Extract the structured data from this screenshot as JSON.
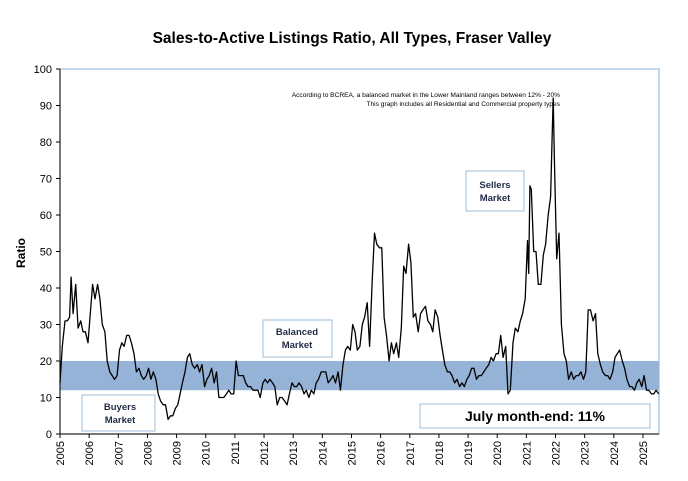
{
  "chart_data": {
    "type": "line",
    "title": "Sales-to-Active Listings Ratio, All Types, Fraser Valley",
    "ylabel": "Ratio",
    "xlabel": "",
    "ylim": [
      0,
      100
    ],
    "yticks": [
      0,
      10,
      20,
      30,
      40,
      50,
      60,
      70,
      80,
      90,
      100
    ],
    "xticks": [
      "2005",
      "2006",
      "2007",
      "2008",
      "2009",
      "2010",
      "2011",
      "2012",
      "2013",
      "2014",
      "2015",
      "2016",
      "2017",
      "2018",
      "2019",
      "2020",
      "2021",
      "2022",
      "2023",
      "2024",
      "2025"
    ],
    "xlim": [
      2005.0,
      2025.55
    ],
    "grid": false,
    "balanced_band": [
      12,
      20
    ],
    "band_color": "#95b3d7",
    "line_color": "#000000",
    "annotations": {
      "note_line1": "According to BCREA, a balanced market in the Lower Mainland ranges between  12% - 20%",
      "note_line2": "This graph includes all Residential and Commercial property types",
      "sellers_line1": "Sellers",
      "sellers_line2": "Market",
      "balanced_line1": "Balanced",
      "balanced_line2": "Market",
      "buyers_line1": "Buyers",
      "buyers_line2": "Market",
      "current": "July month-end: 11%"
    },
    "series": [
      {
        "points": [
          [
            2005.0,
            14
          ],
          [
            2005.08,
            24
          ],
          [
            2005.17,
            31
          ],
          [
            2005.25,
            31
          ],
          [
            2005.33,
            32
          ],
          [
            2005.38,
            43
          ],
          [
            2005.45,
            33
          ],
          [
            2005.54,
            41
          ],
          [
            2005.62,
            29
          ],
          [
            2005.71,
            31
          ],
          [
            2005.79,
            28
          ],
          [
            2005.87,
            28
          ],
          [
            2005.96,
            25
          ],
          [
            2006.04,
            33
          ],
          [
            2006.12,
            41
          ],
          [
            2006.2,
            37
          ],
          [
            2006.29,
            41
          ],
          [
            2006.37,
            37
          ],
          [
            2006.45,
            30
          ],
          [
            2006.54,
            28
          ],
          [
            2006.62,
            20
          ],
          [
            2006.71,
            17
          ],
          [
            2006.79,
            16
          ],
          [
            2006.87,
            15
          ],
          [
            2006.96,
            16
          ],
          [
            2007.04,
            23
          ],
          [
            2007.12,
            25
          ],
          [
            2007.2,
            24
          ],
          [
            2007.29,
            27
          ],
          [
            2007.37,
            27
          ],
          [
            2007.45,
            25
          ],
          [
            2007.54,
            22
          ],
          [
            2007.62,
            17
          ],
          [
            2007.71,
            18
          ],
          [
            2007.79,
            16
          ],
          [
            2007.87,
            15
          ],
          [
            2007.96,
            16
          ],
          [
            2008.04,
            18
          ],
          [
            2008.12,
            15
          ],
          [
            2008.2,
            17
          ],
          [
            2008.29,
            15
          ],
          [
            2008.37,
            11
          ],
          [
            2008.45,
            9
          ],
          [
            2008.54,
            8
          ],
          [
            2008.62,
            8
          ],
          [
            2008.71,
            4
          ],
          [
            2008.79,
            5
          ],
          [
            2008.87,
            5
          ],
          [
            2008.96,
            7
          ],
          [
            2009.04,
            8
          ],
          [
            2009.12,
            11
          ],
          [
            2009.2,
            14
          ],
          [
            2009.29,
            17
          ],
          [
            2009.37,
            21
          ],
          [
            2009.45,
            22
          ],
          [
            2009.54,
            19
          ],
          [
            2009.62,
            18
          ],
          [
            2009.71,
            19
          ],
          [
            2009.79,
            17
          ],
          [
            2009.87,
            19
          ],
          [
            2009.96,
            13
          ],
          [
            2010.04,
            15
          ],
          [
            2010.12,
            16
          ],
          [
            2010.2,
            18
          ],
          [
            2010.29,
            14
          ],
          [
            2010.37,
            17
          ],
          [
            2010.45,
            10
          ],
          [
            2010.54,
            10
          ],
          [
            2010.62,
            10
          ],
          [
            2010.71,
            11
          ],
          [
            2010.79,
            12
          ],
          [
            2010.87,
            11
          ],
          [
            2010.96,
            11
          ],
          [
            2011.04,
            20
          ],
          [
            2011.12,
            16
          ],
          [
            2011.2,
            16
          ],
          [
            2011.29,
            16
          ],
          [
            2011.37,
            14
          ],
          [
            2011.45,
            13
          ],
          [
            2011.54,
            13
          ],
          [
            2011.62,
            12
          ],
          [
            2011.71,
            12
          ],
          [
            2011.79,
            12
          ],
          [
            2011.87,
            10
          ],
          [
            2011.96,
            14
          ],
          [
            2012.04,
            15
          ],
          [
            2012.12,
            14
          ],
          [
            2012.2,
            15
          ],
          [
            2012.29,
            14
          ],
          [
            2012.37,
            13
          ],
          [
            2012.45,
            8
          ],
          [
            2012.54,
            10
          ],
          [
            2012.62,
            10
          ],
          [
            2012.71,
            9
          ],
          [
            2012.79,
            8
          ],
          [
            2012.87,
            11
          ],
          [
            2012.96,
            14
          ],
          [
            2013.04,
            13
          ],
          [
            2013.12,
            13
          ],
          [
            2013.2,
            14
          ],
          [
            2013.29,
            13
          ],
          [
            2013.37,
            11
          ],
          [
            2013.45,
            12
          ],
          [
            2013.54,
            10
          ],
          [
            2013.62,
            12
          ],
          [
            2013.71,
            11
          ],
          [
            2013.79,
            14
          ],
          [
            2013.87,
            15
          ],
          [
            2013.96,
            17
          ],
          [
            2014.04,
            17
          ],
          [
            2014.12,
            17
          ],
          [
            2014.2,
            14
          ],
          [
            2014.29,
            15
          ],
          [
            2014.37,
            16
          ],
          [
            2014.45,
            14
          ],
          [
            2014.54,
            17
          ],
          [
            2014.62,
            12
          ],
          [
            2014.71,
            19
          ],
          [
            2014.79,
            23
          ],
          [
            2014.87,
            24
          ],
          [
            2014.96,
            23
          ],
          [
            2015.04,
            30
          ],
          [
            2015.12,
            28
          ],
          [
            2015.2,
            23
          ],
          [
            2015.29,
            24
          ],
          [
            2015.37,
            30
          ],
          [
            2015.45,
            32
          ],
          [
            2015.54,
            36
          ],
          [
            2015.62,
            24
          ],
          [
            2015.71,
            42
          ],
          [
            2015.79,
            55
          ],
          [
            2015.87,
            52
          ],
          [
            2015.96,
            51
          ],
          [
            2016.04,
            51
          ],
          [
            2016.12,
            32
          ],
          [
            2016.2,
            27
          ],
          [
            2016.29,
            20
          ],
          [
            2016.37,
            25
          ],
          [
            2016.45,
            22
          ],
          [
            2016.54,
            25
          ],
          [
            2016.62,
            21
          ],
          [
            2016.71,
            29
          ],
          [
            2016.79,
            46
          ],
          [
            2016.87,
            44
          ],
          [
            2016.96,
            52
          ],
          [
            2017.04,
            47
          ],
          [
            2017.12,
            32
          ],
          [
            2017.2,
            33
          ],
          [
            2017.29,
            28
          ],
          [
            2017.37,
            33
          ],
          [
            2017.45,
            34
          ],
          [
            2017.54,
            35
          ],
          [
            2017.62,
            31
          ],
          [
            2017.71,
            30
          ],
          [
            2017.79,
            28
          ],
          [
            2017.87,
            34
          ],
          [
            2017.96,
            32
          ],
          [
            2018.04,
            27
          ],
          [
            2018.12,
            23
          ],
          [
            2018.2,
            19
          ],
          [
            2018.29,
            17
          ],
          [
            2018.37,
            17
          ],
          [
            2018.45,
            16
          ],
          [
            2018.54,
            14
          ],
          [
            2018.62,
            15
          ],
          [
            2018.71,
            13
          ],
          [
            2018.79,
            14
          ],
          [
            2018.87,
            13
          ],
          [
            2018.96,
            15
          ],
          [
            2019.04,
            16
          ],
          [
            2019.12,
            18
          ],
          [
            2019.2,
            18
          ],
          [
            2019.29,
            15
          ],
          [
            2019.37,
            16
          ],
          [
            2019.45,
            16
          ],
          [
            2019.54,
            17
          ],
          [
            2019.62,
            18
          ],
          [
            2019.71,
            19
          ],
          [
            2019.79,
            21
          ],
          [
            2019.87,
            20
          ],
          [
            2019.96,
            22
          ],
          [
            2020.04,
            22
          ],
          [
            2020.12,
            27
          ],
          [
            2020.2,
            21
          ],
          [
            2020.29,
            24
          ],
          [
            2020.37,
            11
          ],
          [
            2020.45,
            12
          ],
          [
            2020.54,
            25
          ],
          [
            2020.62,
            29
          ],
          [
            2020.71,
            28
          ],
          [
            2020.79,
            31
          ],
          [
            2020.87,
            33
          ],
          [
            2020.96,
            37
          ],
          [
            2021.04,
            53
          ],
          [
            2021.08,
            44
          ],
          [
            2021.12,
            68
          ],
          [
            2021.17,
            67
          ],
          [
            2021.25,
            50
          ],
          [
            2021.33,
            50
          ],
          [
            2021.41,
            41
          ],
          [
            2021.5,
            41
          ],
          [
            2021.58,
            49
          ],
          [
            2021.66,
            52
          ],
          [
            2021.75,
            60
          ],
          [
            2021.83,
            65
          ],
          [
            2021.88,
            80
          ],
          [
            2021.92,
            92
          ],
          [
            2021.96,
            75
          ],
          [
            2022.04,
            48
          ],
          [
            2022.12,
            55
          ],
          [
            2022.2,
            30
          ],
          [
            2022.29,
            22
          ],
          [
            2022.37,
            20
          ],
          [
            2022.45,
            15
          ],
          [
            2022.54,
            17
          ],
          [
            2022.62,
            15
          ],
          [
            2022.71,
            16
          ],
          [
            2022.79,
            16
          ],
          [
            2022.87,
            17
          ],
          [
            2022.96,
            15
          ],
          [
            2023.04,
            17
          ],
          [
            2023.12,
            34
          ],
          [
            2023.2,
            34
          ],
          [
            2023.29,
            31
          ],
          [
            2023.37,
            33
          ],
          [
            2023.45,
            22
          ],
          [
            2023.54,
            19
          ],
          [
            2023.62,
            17
          ],
          [
            2023.71,
            16
          ],
          [
            2023.79,
            16
          ],
          [
            2023.87,
            15
          ],
          [
            2023.96,
            17
          ],
          [
            2024.04,
            21
          ],
          [
            2024.12,
            22
          ],
          [
            2024.2,
            23
          ],
          [
            2024.29,
            20
          ],
          [
            2024.37,
            18
          ],
          [
            2024.45,
            15
          ],
          [
            2024.54,
            13
          ],
          [
            2024.62,
            13
          ],
          [
            2024.71,
            12
          ],
          [
            2024.79,
            14
          ],
          [
            2024.87,
            15
          ],
          [
            2024.96,
            13
          ],
          [
            2025.04,
            16
          ],
          [
            2025.12,
            12
          ],
          [
            2025.2,
            12
          ],
          [
            2025.29,
            11
          ],
          [
            2025.37,
            11
          ],
          [
            2025.45,
            12
          ],
          [
            2025.54,
            11
          ]
        ]
      }
    ]
  }
}
